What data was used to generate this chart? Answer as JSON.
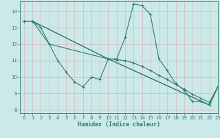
{
  "xlabel": "Humidex (Indice chaleur)",
  "xlim": [
    -0.5,
    23
  ],
  "ylim": [
    7.8,
    14.6
  ],
  "yticks": [
    8,
    9,
    10,
    11,
    12,
    13,
    14
  ],
  "xticks": [
    0,
    1,
    2,
    3,
    4,
    5,
    6,
    7,
    8,
    9,
    10,
    11,
    12,
    13,
    14,
    15,
    16,
    17,
    18,
    19,
    20,
    21,
    22,
    23
  ],
  "bg_color": "#cce8e8",
  "line_color": "#2d7d6f",
  "grid_color": "#b8d8d8",
  "line1_x": [
    0,
    1,
    2,
    3,
    4,
    5,
    6,
    7,
    8,
    9,
    10,
    11,
    12,
    13,
    14,
    15,
    16,
    17,
    18,
    19,
    20,
    21,
    22,
    23
  ],
  "line1_y": [
    13.4,
    13.4,
    13.0,
    12.0,
    11.0,
    10.3,
    9.7,
    9.4,
    10.0,
    9.85,
    11.1,
    11.1,
    12.4,
    14.45,
    14.35,
    13.8,
    11.1,
    10.4,
    9.6,
    9.2,
    8.5,
    8.5,
    8.3,
    9.4
  ],
  "line2_x": [
    0,
    1,
    10,
    11,
    12,
    13,
    14,
    15,
    16,
    17,
    18,
    19,
    20,
    21,
    22,
    23
  ],
  "line2_y": [
    13.4,
    13.4,
    11.1,
    11.05,
    11.0,
    10.85,
    10.65,
    10.4,
    10.1,
    9.85,
    9.55,
    9.25,
    8.95,
    8.7,
    8.45,
    9.4
  ],
  "line3_x": [
    0,
    1,
    10,
    22,
    23
  ],
  "line3_y": [
    13.4,
    13.4,
    11.1,
    8.3,
    9.4
  ],
  "line4_x": [
    0,
    1,
    3,
    10,
    22,
    23
  ],
  "line4_y": [
    13.4,
    13.4,
    12.0,
    11.1,
    8.3,
    9.4
  ]
}
